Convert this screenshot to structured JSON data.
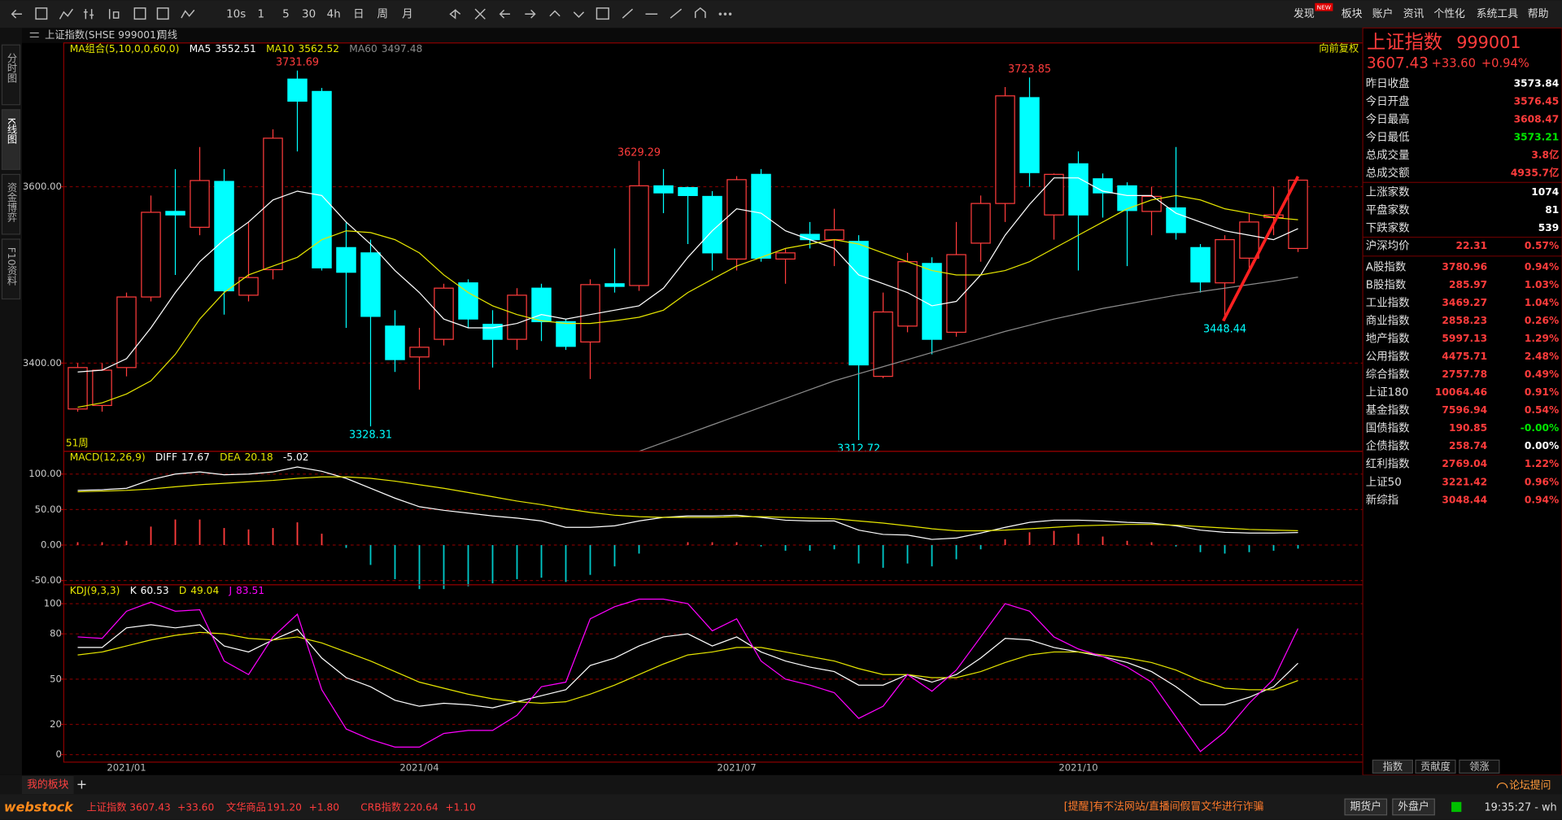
{
  "toolbar": {
    "periods": [
      "10s",
      "1",
      "5",
      "30",
      "4h",
      "日",
      "周",
      "月"
    ],
    "badge": "NEW",
    "menu": [
      "发现",
      "板块",
      "账户",
      "资讯",
      "个性化",
      "系统工具",
      "帮助"
    ]
  },
  "symbol_bar": {
    "name": "上证指数(SHSE 999001)",
    "period": "周线"
  },
  "side_tabs": [
    "分时图",
    "K线图",
    "资金博弈",
    "F10资料"
  ],
  "chart_data": [
    {
      "type": "candlestick",
      "legend_title": "MA组合(5,10,0,0,60,0)",
      "adjust_label": "向前复权",
      "period_count": "51周",
      "up_color": "#ff3c3c",
      "down_color": "#00ffff",
      "ylim": [
        3300,
        3763
      ],
      "yticks": [
        {
          "value": 3600,
          "label": "3600.00"
        },
        {
          "value": 3400,
          "label": "3400.00"
        }
      ],
      "grid": true,
      "open": [
        3348,
        3352,
        3395,
        3475,
        3572,
        3554,
        3606,
        3477,
        3506,
        3722,
        3708,
        3531,
        3525,
        3442,
        3407,
        3427,
        3491,
        3444,
        3427,
        3485,
        3447,
        3424,
        3490,
        3488,
        3601,
        3599,
        3589,
        3518,
        3614,
        3518,
        3546,
        3540,
        3538,
        3385,
        3442,
        3513,
        3435,
        3536,
        3581,
        3701,
        3568,
        3626,
        3609,
        3601,
        3572,
        3576,
        3531,
        3491,
        3519,
        3565,
        3530
      ],
      "high": [
        3400,
        3400,
        3480,
        3590,
        3620,
        3645,
        3620,
        3560,
        3665,
        3731.69,
        3712,
        3560,
        3540,
        3460,
        3440,
        3490,
        3495,
        3460,
        3485,
        3490,
        3450,
        3495,
        3530,
        3629.29,
        3620,
        3600,
        3595,
        3612,
        3620,
        3530,
        3560,
        3575,
        3545,
        3480,
        3525,
        3520,
        3560,
        3590,
        3713,
        3723.85,
        3615,
        3640,
        3615,
        3605,
        3600,
        3645,
        3535,
        3545,
        3570,
        3600,
        3608.47
      ],
      "low": [
        3345,
        3345,
        3385,
        3470,
        3500,
        3545,
        3455,
        3470,
        3495,
        3640,
        3505,
        3440,
        3328.31,
        3390,
        3370,
        3420,
        3440,
        3395,
        3415,
        3425,
        3415,
        3382,
        3480,
        3482,
        3570,
        3535,
        3505,
        3505,
        3515,
        3490,
        3530,
        3510,
        3312.72,
        3383,
        3435,
        3410,
        3430,
        3515,
        3560,
        3600,
        3540,
        3505,
        3565,
        3510,
        3545,
        3540,
        3480,
        3448.44,
        3505,
        3545,
        3526
      ],
      "close": [
        3395,
        3392,
        3475,
        3571,
        3568,
        3607,
        3482,
        3497,
        3655,
        3697,
        3508,
        3503,
        3453,
        3404,
        3418,
        3485,
        3450,
        3427,
        3477,
        3447,
        3419,
        3489,
        3487,
        3601,
        3593,
        3590,
        3525,
        3608,
        3519,
        3525,
        3540,
        3551,
        3398,
        3458,
        3515,
        3427,
        3523,
        3581,
        3703,
        3616,
        3614,
        3568,
        3593,
        3573,
        3589,
        3548,
        3492,
        3540,
        3560,
        3568,
        3607.43
      ],
      "series": [
        {
          "name": "MA5",
          "color": "#ffffff",
          "values": [
            3390,
            3392,
            3405,
            3440,
            3480,
            3515,
            3540,
            3560,
            3585,
            3595,
            3590,
            3560,
            3535,
            3505,
            3480,
            3450,
            3440,
            3440,
            3445,
            3455,
            3450,
            3455,
            3460,
            3465,
            3485,
            3520,
            3550,
            3575,
            3570,
            3550,
            3540,
            3530,
            3500,
            3490,
            3480,
            3465,
            3470,
            3500,
            3545,
            3580,
            3610,
            3610,
            3595,
            3590,
            3590,
            3570,
            3560,
            3550,
            3545,
            3540,
            3552.51
          ]
        },
        {
          "name": "MA10",
          "color": "#e6e600",
          "values": [
            3350,
            3355,
            3365,
            3380,
            3410,
            3450,
            3480,
            3500,
            3510,
            3520,
            3540,
            3550,
            3548,
            3540,
            3525,
            3500,
            3480,
            3465,
            3455,
            3448,
            3445,
            3445,
            3448,
            3452,
            3460,
            3480,
            3495,
            3510,
            3520,
            3530,
            3535,
            3540,
            3535,
            3525,
            3515,
            3505,
            3500,
            3500,
            3505,
            3515,
            3530,
            3545,
            3560,
            3575,
            3585,
            3590,
            3585,
            3575,
            3570,
            3565,
            3562.52
          ]
        },
        {
          "name": "MA60",
          "color": "#8c8c8c",
          "values": [
            null,
            null,
            null,
            null,
            null,
            null,
            null,
            null,
            null,
            null,
            null,
            null,
            null,
            null,
            null,
            null,
            null,
            null,
            null,
            null,
            null,
            null,
            null,
            3300,
            3310,
            3320,
            3330,
            3340,
            3350,
            3360,
            3370,
            3380,
            3388,
            3396,
            3404,
            3412,
            3420,
            3428,
            3436,
            3443,
            3450,
            3456,
            3462,
            3467,
            3472,
            3477,
            3481,
            3485,
            3489,
            3493,
            3497.48
          ]
        }
      ]
    },
    {
      "type": "line",
      "title": "MACD(12,26,9)",
      "ylim": [
        -56,
        132
      ],
      "yticks": [
        {
          "value": 100,
          "label": "100.00"
        },
        {
          "value": 50,
          "label": "50.00"
        },
        {
          "value": 0,
          "label": "0.00"
        },
        {
          "value": -50,
          "label": "-50.00"
        }
      ],
      "grid": true,
      "series": [
        {
          "name": "DIFF",
          "color": "#ffffff",
          "values": [
            77,
            78,
            80,
            92,
            100,
            103,
            99,
            100,
            103,
            110,
            104,
            94,
            80,
            66,
            54,
            49,
            45,
            41,
            38,
            34,
            25,
            25,
            27,
            34,
            39,
            41,
            41,
            42,
            39,
            35,
            34,
            34,
            21,
            15,
            14,
            8,
            10,
            17,
            25,
            32,
            35,
            35,
            34,
            32,
            31,
            27,
            21,
            18,
            17,
            17,
            17.67
          ]
        },
        {
          "name": "DEA",
          "color": "#e6e600",
          "values": [
            75,
            76,
            77,
            79,
            82,
            85,
            87,
            89,
            91,
            94,
            96,
            96,
            94,
            90,
            85,
            80,
            74,
            68,
            62,
            57,
            51,
            46,
            42,
            40,
            39,
            39,
            39,
            40,
            40,
            39,
            38,
            37,
            34,
            31,
            27,
            23,
            20,
            20,
            21,
            23,
            25,
            27,
            28,
            29,
            29,
            28,
            26,
            24,
            22,
            21,
            20.18
          ]
        },
        {
          "type": "bar",
          "color": "#ff3c3c",
          "down_color": "#00c8c8",
          "values": [
            4,
            4,
            6,
            26,
            36,
            36,
            24,
            22,
            24,
            32,
            16,
            -4,
            -28,
            -48,
            -62,
            -62,
            -58,
            -54,
            -48,
            -46,
            -52,
            -42,
            -30,
            -12,
            0,
            4,
            4,
            4,
            -2,
            -8,
            -8,
            -6,
            -26,
            -32,
            -26,
            -30,
            -20,
            -6,
            8,
            18,
            20,
            16,
            12,
            6,
            4,
            -2,
            -10,
            -12,
            -10,
            -8,
            -5.02
          ]
        }
      ]
    },
    {
      "type": "line",
      "title": "KDJ(9,3,3)",
      "ylim": [
        -5,
        112.5
      ],
      "yticks": [
        100,
        80,
        50,
        20,
        0
      ],
      "grid": true,
      "categories": [
        null,
        null,
        "2021/01",
        null,
        null,
        null,
        null,
        null,
        null,
        null,
        null,
        null,
        null,
        null,
        "2021/04",
        null,
        null,
        null,
        null,
        null,
        null,
        null,
        null,
        null,
        null,
        null,
        null,
        "2021/07",
        null,
        null,
        null,
        null,
        null,
        null,
        null,
        null,
        null,
        null,
        null,
        null,
        null,
        "2021/10",
        null,
        null,
        null,
        null,
        null,
        null,
        null,
        null,
        null
      ],
      "series": [
        {
          "name": "K",
          "color": "#ffffff",
          "values": [
            71,
            71,
            84,
            86,
            84,
            86,
            72,
            68,
            76,
            83,
            64,
            51,
            45,
            36,
            32,
            34,
            33,
            31,
            35,
            39,
            43,
            59,
            64,
            72,
            78,
            80,
            72,
            78,
            68,
            62,
            58,
            55,
            46,
            46,
            53,
            48,
            53,
            64,
            77,
            76,
            71,
            68,
            65,
            61,
            55,
            45,
            33,
            33,
            38,
            45,
            60.53
          ]
        },
        {
          "name": "D",
          "color": "#e6e600",
          "values": [
            66,
            68,
            72,
            76,
            79,
            81,
            80,
            77,
            76,
            78,
            74,
            68,
            62,
            55,
            48,
            44,
            40,
            37,
            35,
            34,
            35,
            40,
            46,
            53,
            60,
            66,
            68,
            71,
            71,
            68,
            65,
            62,
            57,
            53,
            53,
            51,
            51,
            55,
            61,
            66,
            68,
            68,
            66,
            64,
            61,
            56,
            49,
            44,
            43,
            43,
            49.04
          ]
        },
        {
          "name": "J",
          "color": "#ff00ff",
          "values": [
            78,
            77,
            95,
            101,
            95,
            96,
            62,
            53,
            78,
            93,
            43,
            17,
            10,
            5,
            5,
            14,
            16,
            16,
            26,
            45,
            48,
            90,
            98,
            103,
            103,
            100,
            82,
            90,
            62,
            50,
            46,
            41,
            24,
            32,
            53,
            42,
            56,
            78,
            100,
            95,
            78,
            70,
            65,
            58,
            48,
            25,
            2,
            15,
            34,
            50,
            83.51
          ]
        }
      ]
    }
  ],
  "quote_panel": {
    "name": "上证指数",
    "code": "999001",
    "price": "3607.43",
    "change": "+33.60",
    "change_pct": "+0.94%",
    "stats": [
      {
        "label": "昨日收盘",
        "value": "3573.84",
        "color": "#ffffff"
      },
      {
        "label": "今日开盘",
        "value": "3576.45",
        "color": "#ff3c3c"
      },
      {
        "label": "今日最高",
        "value": "3608.47",
        "color": "#ff3c3c"
      },
      {
        "label": "今日最低",
        "value": "3573.21",
        "color": "#00e600"
      },
      {
        "label": "总成交量",
        "value": "3.8亿",
        "color": "#ff3c3c"
      },
      {
        "label": "总成交额",
        "value": "4935.7亿",
        "color": "#ff3c3c"
      }
    ],
    "breadth": [
      {
        "label": "上涨家数",
        "value": "1074"
      },
      {
        "label": "平盘家数",
        "value": "81"
      },
      {
        "label": "下跌家数",
        "value": "539"
      }
    ],
    "avg": {
      "label": "沪深均价",
      "value": "22.31",
      "pct": "0.57%"
    },
    "indices": [
      {
        "label": "A股指数",
        "value": "3780.96",
        "pct": "0.94%"
      },
      {
        "label": "B股指数",
        "value": "285.97",
        "pct": "1.03%"
      },
      {
        "label": "工业指数",
        "value": "3469.27",
        "pct": "1.04%"
      },
      {
        "label": "商业指数",
        "value": "2858.23",
        "pct": "0.26%"
      },
      {
        "label": "地产指数",
        "value": "5997.13",
        "pct": "1.29%"
      },
      {
        "label": "公用指数",
        "value": "4475.71",
        "pct": "2.48%"
      },
      {
        "label": "综合指数",
        "value": "2757.78",
        "pct": "0.49%"
      },
      {
        "label": "上证180",
        "value": "10064.46",
        "pct": "0.91%"
      },
      {
        "label": "基金指数",
        "value": "7596.94",
        "pct": "0.54%"
      },
      {
        "label": "国债指数",
        "value": "190.85",
        "pct": "-0.00%",
        "color": "#00e600"
      },
      {
        "label": "企债指数",
        "value": "258.74",
        "pct": "0.00%",
        "color": "#ffffff"
      },
      {
        "label": "红利指数",
        "value": "2769.04",
        "pct": "1.22%"
      },
      {
        "label": "上证50",
        "value": "3221.42",
        "pct": "0.96%"
      },
      {
        "label": "新综指",
        "value": "3048.44",
        "pct": "0.94%"
      }
    ],
    "tabs": [
      "指数",
      "贡献度",
      "领涨"
    ]
  },
  "board_bar": {
    "title": "我的板块",
    "add": "+"
  },
  "status_bar": {
    "logo": "webstock",
    "tickers": [
      {
        "name": "上证指数",
        "price": "3607.43",
        "change": "+33.60"
      },
      {
        "name": "文华商品",
        "price": "191.20",
        "change": "+1.80"
      },
      {
        "name": "CRB指数",
        "price": "220.64",
        "change": "+1.10"
      }
    ],
    "notice": "[提醒]有不法网站/直播间假冒文华进行诈骗",
    "buttons": [
      "期货户",
      "外盘户"
    ],
    "time": "19:35:27 - wh",
    "forum": "论坛提问"
  }
}
